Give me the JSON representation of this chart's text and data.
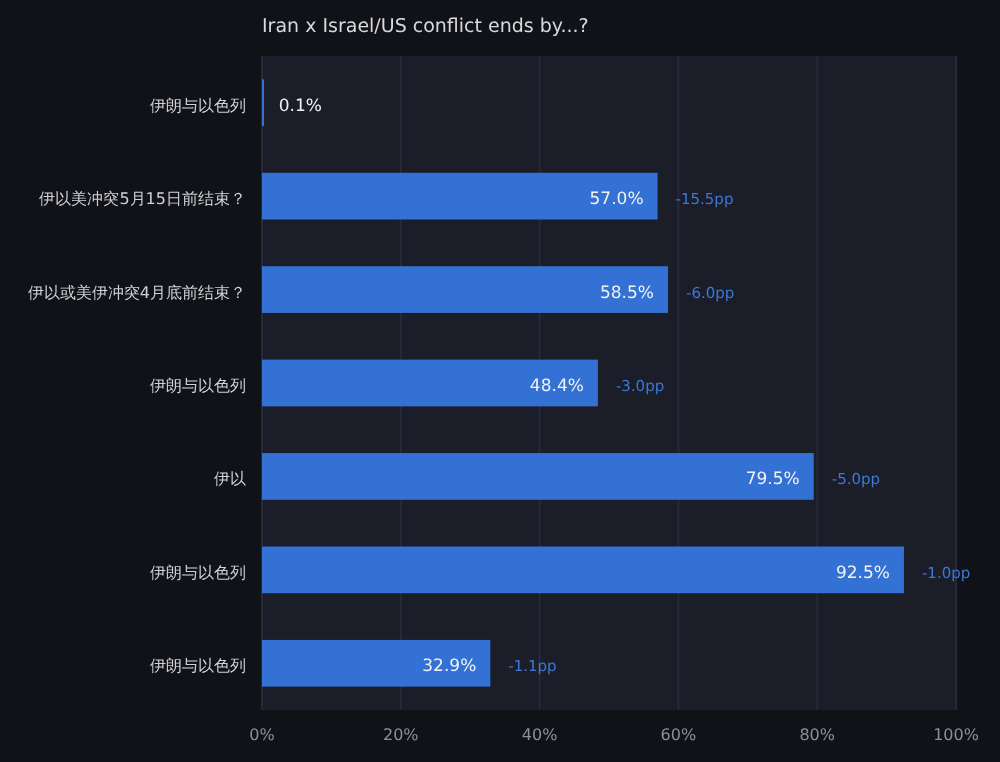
{
  "chart_data": {
    "type": "bar",
    "orientation": "horizontal",
    "title": "Iran x Israel/US conflict ends by...?",
    "categories": [
      "伊朗与以色列",
      "伊以美冲突5月15日前结束？",
      "伊以或美伊冲突4月底前结束？",
      "伊朗与以色列",
      "伊以",
      "伊朗与以色列",
      "伊朗与以色列"
    ],
    "values": [
      0.1,
      57.0,
      58.5,
      48.4,
      79.5,
      92.5,
      32.9
    ],
    "value_labels": [
      "0.1%",
      "57.0%",
      "58.5%",
      "48.4%",
      "79.5%",
      "92.5%",
      "32.9%"
    ],
    "color": "#3372d4",
    "annotations": [
      "-15.5pp",
      "-6.0pp",
      "-3.0pp",
      "-5.0pp",
      "-1.0pp",
      "-1.1pp"
    ],
    "xlim": [
      0,
      100
    ],
    "xticks": [
      {
        "value": 0,
        "label": "0%"
      },
      {
        "value": 20,
        "label": "20%"
      },
      {
        "value": 40,
        "label": "40%"
      },
      {
        "value": 60,
        "label": "60%"
      },
      {
        "value": 80,
        "label": "80%"
      },
      {
        "value": 100,
        "label": "100%"
      }
    ],
    "grid": "x"
  }
}
